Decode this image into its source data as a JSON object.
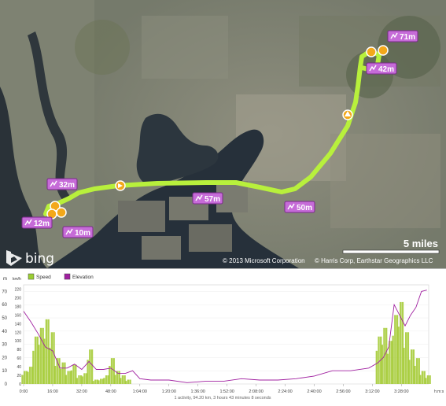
{
  "map": {
    "provider_logo": "bing",
    "scale_label": "5 miles",
    "copyright": "© 2013 Microsoft Corporation",
    "credits": "© Harris Corp, Earthstar Geographics LLC",
    "route_color": "#b8f03c",
    "elevation_markers": [
      {
        "label": "71m"
      },
      {
        "label": "42m"
      },
      {
        "label": "32m"
      },
      {
        "label": "57m"
      },
      {
        "label": "50m"
      },
      {
        "label": "12m"
      },
      {
        "label": "10m"
      }
    ]
  },
  "chart": {
    "legend": [
      {
        "label": "Speed",
        "color": "#9acd32"
      },
      {
        "label": "Elevation",
        "color": "#a020a0"
      }
    ],
    "left_unit": "m",
    "right_unit": "km/h",
    "x_unit": "h:m:s",
    "left_ticks": [
      "0",
      "10",
      "20",
      "30",
      "40",
      "50",
      "60",
      "70"
    ],
    "right_ticks": [
      "0",
      "20",
      "40",
      "60",
      "80",
      "100",
      "120",
      "140",
      "160",
      "180",
      "200",
      "220"
    ],
    "x_ticks": [
      "0:00",
      "16:00",
      "32:00",
      "48:00",
      "1:04:00",
      "1:20:00",
      "1:36:00",
      "1:52:00",
      "2:08:00",
      "2:24:00",
      "2:40:00",
      "2:56:00",
      "3:12:00",
      "3:28:00"
    ],
    "footer": "1 activity, 94.20 km, 3 hours 43 minutes 8 seconds"
  },
  "chart_data": {
    "type": "bar",
    "x_unit_minutes": "",
    "x_range": [
      0,
      223
    ],
    "series": [
      {
        "name": "Speed",
        "type": "bar",
        "axis": "right",
        "x": [
          0,
          3,
          6,
          9,
          12,
          15,
          18,
          21,
          24,
          27,
          30,
          33,
          36,
          39,
          42,
          45,
          48,
          51,
          54,
          57,
          195,
          198,
          201,
          204,
          207,
          210,
          213,
          216,
          219,
          222
        ],
        "values": [
          30,
          40,
          110,
          130,
          150,
          120,
          60,
          50,
          30,
          45,
          20,
          25,
          80,
          10,
          12,
          20,
          60,
          30,
          20,
          10,
          110,
          130,
          100,
          160,
          190,
          120,
          80,
          60,
          30,
          20
        ]
      },
      {
        "name": "Elevation",
        "type": "line",
        "axis": "left",
        "x": [
          0,
          4,
          8,
          12,
          16,
          20,
          24,
          28,
          32,
          36,
          40,
          44,
          48,
          52,
          56,
          60,
          64,
          70,
          80,
          90,
          100,
          110,
          120,
          130,
          140,
          150,
          160,
          170,
          180,
          190,
          195,
          198,
          201,
          204,
          207,
          210,
          213,
          216,
          219,
          222
        ],
        "values": [
          55,
          47,
          38,
          28,
          25,
          12,
          12,
          15,
          11,
          17,
          11,
          11,
          12,
          8,
          8,
          10,
          4,
          3,
          3,
          1,
          2,
          2,
          4,
          3,
          3,
          4,
          6,
          10,
          10,
          12,
          16,
          20,
          28,
          60,
          52,
          44,
          52,
          58,
          70,
          71
        ]
      }
    ],
    "ylim_left": [
      0,
      75
    ],
    "ylim_right": [
      0,
      230
    ]
  }
}
